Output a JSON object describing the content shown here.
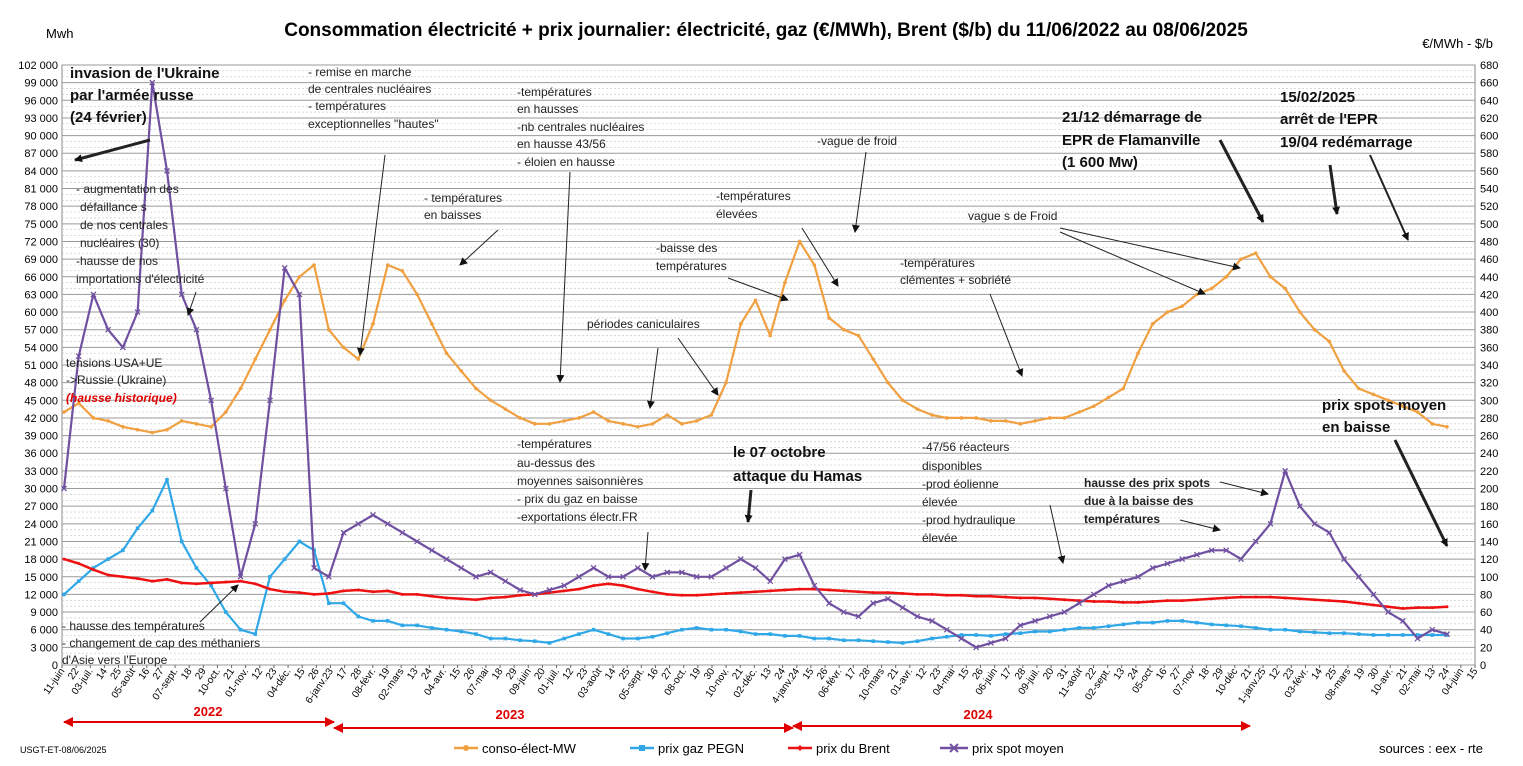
{
  "chart_data": {
    "type": "line",
    "title": "Consommation électricité + prix journalier: électricité, gaz (€/MWh), Brent ($/b) du 11/06/2022 au  08/06/2025",
    "ylabel_left": "Mwh",
    "ylabel_right": "€/MWh - $/b",
    "ylim_left": [
      0,
      102000
    ],
    "ylim_right": [
      0,
      680
    ],
    "grid": true,
    "legend_position": "bottom",
    "yticks_left": [
      "0",
      "3 000",
      "6 000",
      "9 000",
      "12 000",
      "15 000",
      "18 000",
      "21 000",
      "24 000",
      "27 000",
      "30 000",
      "33 000",
      "36 000",
      "39 000",
      "42 000",
      "45 000",
      "48 000",
      "51 000",
      "54 000",
      "57 000",
      "60 000",
      "63 000",
      "66 000",
      "69 000",
      "72 000",
      "75 000",
      "78 000",
      "81 000",
      "84 000",
      "87 000",
      "90 000",
      "93 000",
      "96 000",
      "99 000",
      "102 000"
    ],
    "yticks_right": [
      "0",
      "20",
      "40",
      "60",
      "80",
      "100",
      "120",
      "140",
      "160",
      "180",
      "200",
      "220",
      "240",
      "260",
      "280",
      "300",
      "320",
      "340",
      "360",
      "380",
      "400",
      "420",
      "440",
      "460",
      "480",
      "500",
      "520",
      "540",
      "560",
      "580",
      "600",
      "620",
      "640",
      "660",
      "680"
    ],
    "xticks": [
      "11-juin",
      "22",
      "03-juil.",
      "14",
      "25",
      "05-août",
      "16",
      "27",
      "07-sept.",
      "18",
      "29",
      "10-oct.",
      "21",
      "01-nov.",
      "12",
      "23",
      "04-déc.",
      "15",
      "26",
      "6-janv.23",
      "17",
      "28",
      "08-févr.",
      "19",
      "02-mars",
      "13",
      "24",
      "04-avr.",
      "15",
      "26",
      "07-mai",
      "18",
      "29",
      "09-juin",
      "20",
      "01-juil.",
      "12",
      "23",
      "03-août",
      "14",
      "25",
      "05-sept.",
      "16",
      "27",
      "08-oct.",
      "19",
      "30",
      "10-nov.",
      "21",
      "02-déc.",
      "13",
      "24",
      "4-janv.24",
      "15",
      "26",
      "06-févr.",
      "17",
      "28",
      "10-mars",
      "21",
      "01-avr.",
      "12",
      "23",
      "04-mai",
      "15",
      "26",
      "06-juin",
      "17",
      "28",
      "09-juil.",
      "20",
      "31",
      "11-août",
      "22",
      "02-sept.",
      "13",
      "24",
      "05-oct",
      "16",
      "27",
      "07-nov",
      "18",
      "29",
      "10-déc",
      "21",
      "1-janv.25",
      "12",
      "23",
      "03-févr.",
      "14",
      "25",
      "08-mars",
      "19",
      "30",
      "10-avr.",
      "21",
      "02-mai",
      "13",
      "24",
      "04-juin",
      "15"
    ],
    "years": [
      "2022",
      "2023",
      "2024"
    ],
    "series": [
      {
        "name": "conso-élect-MW",
        "axis": "left",
        "color": "#f0a040",
        "values": [
          43000,
          44500,
          42000,
          41500,
          40500,
          40000,
          39500,
          40000,
          41500,
          41000,
          40500,
          43000,
          47000,
          52000,
          57000,
          62000,
          66000,
          68000,
          57000,
          54000,
          52000,
          58000,
          68000,
          67000,
          63000,
          58000,
          53000,
          50000,
          47000,
          45000,
          43500,
          42000,
          41000,
          41000,
          41500,
          42000,
          43000,
          41500,
          41000,
          40500,
          41000,
          42500,
          41000,
          41500,
          42500,
          48000,
          58000,
          62000,
          56000,
          65000,
          72000,
          68000,
          59000,
          57000,
          56000,
          52000,
          48000,
          45000,
          43500,
          42500,
          42000,
          42000,
          42000,
          41500,
          41500,
          41000,
          41500,
          42000,
          42000,
          43000,
          44000,
          45500,
          47000,
          53000,
          58000,
          60000,
          61000,
          63000,
          64000,
          66000,
          69000,
          70000,
          66000,
          64000,
          60000,
          57000,
          55000,
          50000,
          47000,
          46000,
          45000,
          44000,
          43000,
          41000,
          40500
        ]
      },
      {
        "name": "prix gaz PEGN",
        "axis": "right",
        "color": "#30a8e8",
        "values": [
          80,
          95,
          110,
          120,
          130,
          155,
          175,
          210,
          140,
          110,
          90,
          60,
          40,
          35,
          100,
          120,
          140,
          130,
          70,
          70,
          55,
          50,
          50,
          45,
          45,
          42,
          40,
          38,
          35,
          30,
          30,
          28,
          27,
          25,
          30,
          35,
          40,
          35,
          30,
          30,
          32,
          36,
          40,
          42,
          40,
          40,
          38,
          35,
          35,
          33,
          33,
          30,
          30,
          28,
          28,
          27,
          26,
          25,
          27,
          30,
          32,
          34,
          34,
          33,
          35,
          36,
          38,
          38,
          40,
          42,
          42,
          44,
          46,
          48,
          48,
          50,
          50,
          48,
          46,
          45,
          44,
          42,
          40,
          40,
          38,
          37,
          36,
          36,
          35,
          34,
          34,
          34,
          34,
          34,
          34
        ]
      },
      {
        "name": "prix du Brent",
        "axis": "right",
        "color": "#ee1111",
        "values": [
          120,
          115,
          108,
          102,
          100,
          98,
          95,
          97,
          93,
          92,
          93,
          94,
          95,
          92,
          86,
          83,
          82,
          80,
          81,
          84,
          85,
          83,
          84,
          80,
          80,
          78,
          76,
          75,
          74,
          76,
          77,
          79,
          80,
          82,
          84,
          86,
          90,
          92,
          90,
          86,
          83,
          80,
          79,
          79,
          80,
          81,
          82,
          83,
          84,
          85,
          86,
          86,
          85,
          84,
          83,
          82,
          82,
          81,
          80,
          80,
          79,
          79,
          78,
          78,
          77,
          76,
          76,
          75,
          74,
          73,
          72,
          72,
          71,
          71,
          72,
          73,
          73,
          74,
          75,
          76,
          77,
          77,
          77,
          76,
          75,
          74,
          73,
          72,
          70,
          68,
          66,
          64,
          65,
          65,
          66
        ]
      },
      {
        "name": "prix spot moyen",
        "axis": "right",
        "color": "#7050a0",
        "values": [
          200,
          350,
          420,
          380,
          360,
          400,
          660,
          560,
          420,
          380,
          300,
          200,
          100,
          160,
          300,
          450,
          420,
          110,
          100,
          150,
          160,
          170,
          160,
          150,
          140,
          130,
          120,
          110,
          100,
          105,
          95,
          85,
          80,
          85,
          90,
          100,
          110,
          100,
          100,
          110,
          100,
          105,
          105,
          100,
          100,
          110,
          120,
          110,
          95,
          120,
          125,
          90,
          70,
          60,
          55,
          70,
          75,
          65,
          55,
          50,
          40,
          30,
          20,
          25,
          30,
          45,
          50,
          55,
          60,
          70,
          80,
          90,
          95,
          100,
          110,
          115,
          120,
          125,
          130,
          130,
          120,
          140,
          160,
          220,
          180,
          160,
          150,
          120,
          100,
          80,
          60,
          50,
          30,
          40,
          35
        ]
      }
    ]
  },
  "annotations": {
    "invasion": [
      "invasion de l'Ukraine",
      "par l'armée russe",
      "(24 février)"
    ],
    "defaillances": [
      "- augmentation  des",
      "défaillance s",
      "de nos centrales",
      "nucléaires (30)",
      "-hausse de nos",
      "importations d'électricité"
    ],
    "tensions": [
      "tensions USA+UE",
      "->Russie (Ukraine)"
    ],
    "hausse_historique": "(hausse historique)",
    "hausse_temp": [
      "- hausse des températures",
      "- changement de cap des méthaniers",
      "d'Asie vers l'Europe"
    ],
    "remise_marche": [
      "- remise en marche",
      "de centrales nucléaires",
      "- températures",
      "exceptionnelles \"hautes\""
    ],
    "temp_baisses": [
      "- températures",
      "en baisses"
    ],
    "temp_hausses": [
      "-températures",
      "en hausses",
      "-nb centrales nucléaires",
      "en hausse 43/56",
      "- éloien en hausse"
    ],
    "temp_dessus": [
      "-températures",
      "au-dessus des",
      "moyennes saisonnières",
      "- prix du gaz en baisse",
      "-exportations électr.FR"
    ],
    "periodes_caniculaires": "périodes caniculaires",
    "baisse_temp": [
      "-baisse des",
      "températures"
    ],
    "temp_elevees": [
      "-températures",
      "élevées"
    ],
    "vague_froid": "-vague de froid",
    "hamas": [
      "le 07 octobre",
      "attaque du Hamas"
    ],
    "temp_clementes": [
      "-températures",
      "clémentes + sobriété"
    ],
    "reacteurs": [
      "-47/56 réacteurs",
      "disponibles",
      "-prod éolienne",
      "élevée",
      "-prod hydraulique",
      "élevée"
    ],
    "epr": [
      "21/12 démarrage de",
      "EPR de Flamanville",
      "(1 600 Mw)"
    ],
    "vagues_froid": "vague s de Froid",
    "arret_epr": [
      "15/02/2025",
      "arrêt de  l'EPR",
      "19/04 redémarrage"
    ],
    "hausse_spots": [
      "hausse des prix spots",
      "due à la baisse des",
      "températures"
    ],
    "spots_baisse": [
      "prix spots moyen",
      "en baisse"
    ]
  },
  "footer": {
    "code": "USGT-ET-08/06/2025",
    "sources": "sources : eex - rte"
  },
  "colors": {
    "red": "#e00000",
    "grid": "#9a9a9a",
    "plot_bg": "#ffffff"
  }
}
